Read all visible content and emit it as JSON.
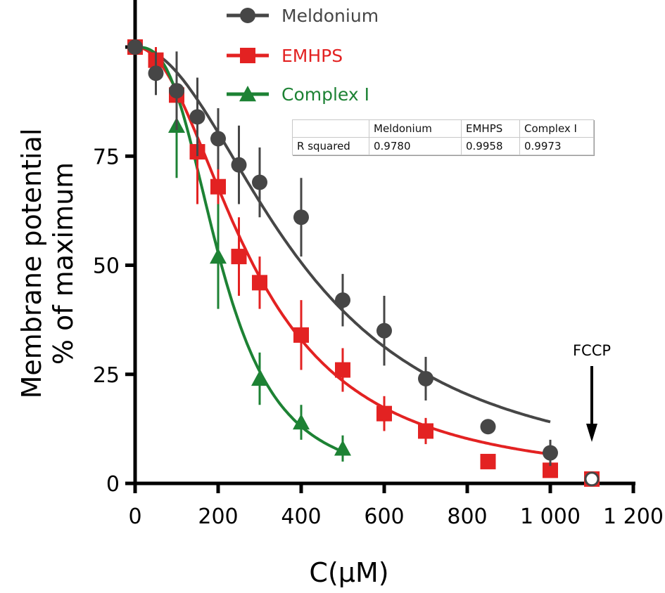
{
  "chart_data": {
    "type": "scatter",
    "title": "",
    "xlabel": "C(μM)",
    "ylabel_line1": "Membrane potential",
    "ylabel_line2": "% of maximum",
    "xlim": [
      0,
      1200
    ],
    "ylim": [
      0,
      100
    ],
    "x_ticks": [
      0,
      200,
      400,
      600,
      800,
      1000,
      1200
    ],
    "x_tick_labels": [
      "0",
      "200",
      "400",
      "600",
      "800",
      "1 000",
      "1 200"
    ],
    "y_ticks": [
      0,
      25,
      50,
      75,
      100
    ],
    "y_tick_labels": [
      "0",
      "25",
      "50",
      "75",
      ""
    ],
    "grid": false,
    "legend_position": "top-center",
    "series": [
      {
        "name": "Meldonium",
        "color": "#464646",
        "marker": "circle",
        "x": [
          0,
          50,
          100,
          150,
          200,
          250,
          300,
          400,
          500,
          600,
          700,
          850,
          1000
        ],
        "y": [
          100,
          94,
          90,
          84,
          79,
          73,
          69,
          61,
          42,
          35,
          24,
          13,
          7
        ],
        "err": [
          0,
          5,
          9,
          9,
          7,
          9,
          8,
          9,
          6,
          8,
          5,
          1,
          3
        ],
        "fit_x_range": [
          0,
          1000
        ]
      },
      {
        "name": "EMHPS",
        "color": "#e32222",
        "marker": "square",
        "x": [
          0,
          50,
          100,
          150,
          200,
          250,
          300,
          400,
          500,
          600,
          700,
          850,
          1000
        ],
        "y": [
          100,
          97,
          89,
          76,
          68,
          52,
          46,
          34,
          26,
          16,
          12,
          5,
          3
        ],
        "err": [
          0,
          3,
          4,
          12,
          10,
          9,
          6,
          8,
          5,
          4,
          3,
          1,
          1
        ],
        "fit_x_range": [
          0,
          1000
        ]
      },
      {
        "name": "Complex I",
        "color": "#1d8234",
        "marker": "triangle",
        "x": [
          100,
          200,
          300,
          400,
          500
        ],
        "y": [
          82,
          52,
          24,
          14,
          8
        ],
        "err": [
          12,
          12,
          6,
          4,
          3
        ],
        "fit_x_range": [
          0,
          500
        ]
      }
    ],
    "fccp_point": {
      "x": 1100,
      "y": 1
    },
    "annotations": [
      {
        "text": "FCCP",
        "points_to_x": 1100
      }
    ],
    "r_squared_table": {
      "headers": [
        "",
        "Meldonium",
        "EMHPS",
        "Complex I"
      ],
      "rows": [
        [
          "R squared",
          "0.9780",
          "0.9958",
          "0.9973"
        ]
      ]
    }
  }
}
